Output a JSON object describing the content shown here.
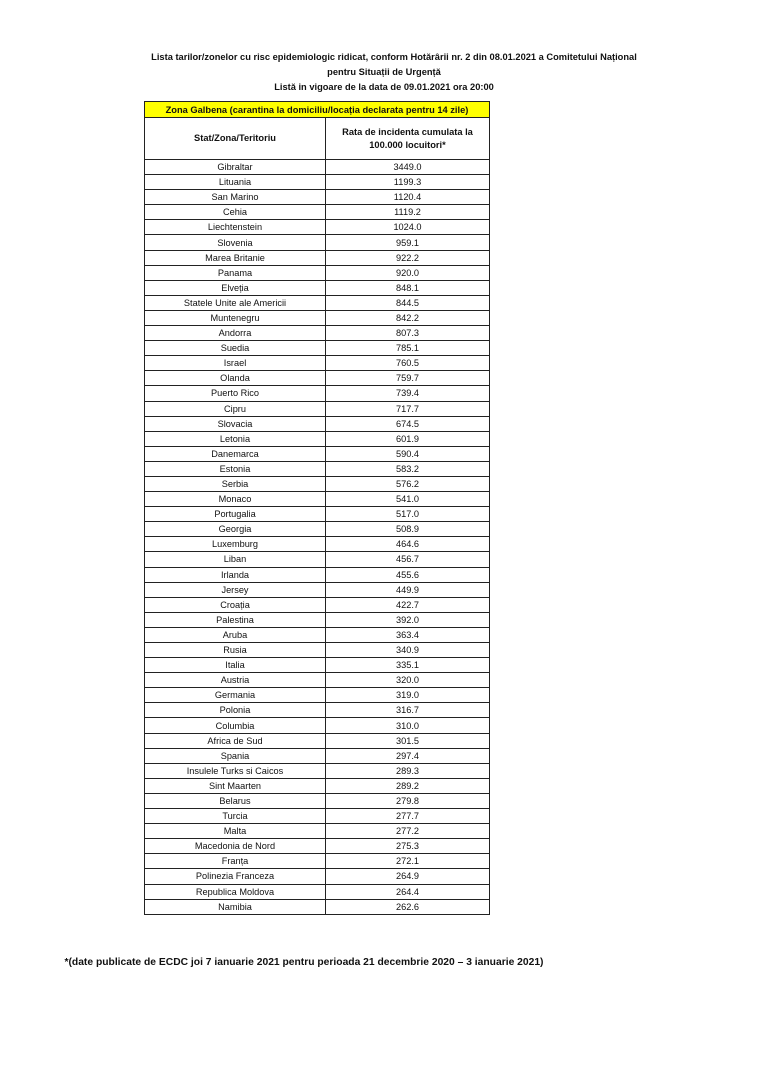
{
  "header": {
    "line1": "Lista tarilor/zonelor cu risc epidemiologic ridicat, conform Hotărârii nr. 2 din 08.01.2021 a Comitetului Național",
    "line2": "pentru Situații de Urgență",
    "line3": "Listă in vigoare de la data de 09.01.2021 ora 20:00"
  },
  "table": {
    "zone_title": "Zona Galbena (carantina la domiciliu/locația declarata pentru 14 zile)",
    "zone_color": "#ffff00",
    "columns": [
      "Stat/Zona/Teritoriu",
      "Rata de incidenta cumulata la 100.000 locuitori*"
    ],
    "rows": [
      [
        "Gibraltar",
        "3449.0"
      ],
      [
        "Lituania",
        "1199.3"
      ],
      [
        "San Marino",
        "1120.4"
      ],
      [
        "Cehia",
        "1119.2"
      ],
      [
        "Liechtenstein",
        "1024.0"
      ],
      [
        "Slovenia",
        "959.1"
      ],
      [
        "Marea Britanie",
        "922.2"
      ],
      [
        "Panama",
        "920.0"
      ],
      [
        "Elveția",
        "848.1"
      ],
      [
        "Statele Unite ale Americii",
        "844.5"
      ],
      [
        "Muntenegru",
        "842.2"
      ],
      [
        "Andorra",
        "807.3"
      ],
      [
        "Suedia",
        "785.1"
      ],
      [
        "Israel",
        "760.5"
      ],
      [
        "Olanda",
        "759.7"
      ],
      [
        "Puerto Rico",
        "739.4"
      ],
      [
        "Cipru",
        "717.7"
      ],
      [
        "Slovacia",
        "674.5"
      ],
      [
        "Letonia",
        "601.9"
      ],
      [
        "Danemarca",
        "590.4"
      ],
      [
        "Estonia",
        "583.2"
      ],
      [
        "Serbia",
        "576.2"
      ],
      [
        "Monaco",
        "541.0"
      ],
      [
        "Portugalia",
        "517.0"
      ],
      [
        "Georgia",
        "508.9"
      ],
      [
        "Luxemburg",
        "464.6"
      ],
      [
        "Liban",
        "456.7"
      ],
      [
        "Irlanda",
        "455.6"
      ],
      [
        "Jersey",
        "449.9"
      ],
      [
        "Croația",
        "422.7"
      ],
      [
        "Palestina",
        "392.0"
      ],
      [
        "Aruba",
        "363.4"
      ],
      [
        "Rusia",
        "340.9"
      ],
      [
        "Italia",
        "335.1"
      ],
      [
        "Austria",
        "320.0"
      ],
      [
        "Germania",
        "319.0"
      ],
      [
        "Polonia",
        "316.7"
      ],
      [
        "Columbia",
        "310.0"
      ],
      [
        "Africa de Sud",
        "301.5"
      ],
      [
        "Spania",
        "297.4"
      ],
      [
        "Insulele Turks si Caicos",
        "289.3"
      ],
      [
        "Sint Maarten",
        "289.2"
      ],
      [
        "Belarus",
        "279.8"
      ],
      [
        "Turcia",
        "277.7"
      ],
      [
        "Malta",
        "277.2"
      ],
      [
        "Macedonia de Nord",
        "275.3"
      ],
      [
        "Franța",
        "272.1"
      ],
      [
        "Polinezia Franceza",
        "264.9"
      ],
      [
        "Republica Moldova",
        "264.4"
      ],
      [
        "Namibia",
        "262.6"
      ]
    ]
  },
  "footnote": "*(date publicate de ECDC joi 7 ianuarie 2021 pentru perioada 21 decembrie 2020 – 3 ianuarie 2021)"
}
